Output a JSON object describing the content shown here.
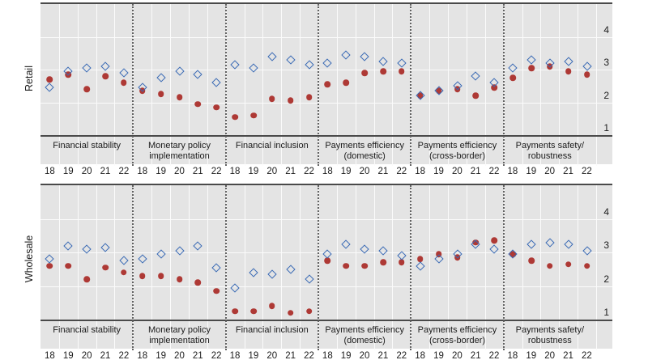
{
  "colors": {
    "diamond_blue": "#3a6ab5",
    "dot_red": "#ae3935",
    "plot_background": "#e4e4e4",
    "gridline": "#fbfbfb",
    "axis_line": "#4a4a4a",
    "separator": "#616161",
    "text": "#1c1c1c"
  },
  "chart_data": [
    {
      "type": "scatter",
      "panel": "Retail",
      "y_ticks": [
        4,
        3,
        2,
        1
      ],
      "y_range": [
        1,
        5
      ],
      "grid": true,
      "years": [
        "18",
        "19",
        "20",
        "21",
        "22"
      ],
      "categories": [
        {
          "label": "Financial stability",
          "lines": [
            "Financial stability"
          ]
        },
        {
          "label": "Monetary policy implementation",
          "lines": [
            "Monetary policy",
            "implementation"
          ]
        },
        {
          "label": "Financial inclusion",
          "lines": [
            "Financial inclusion"
          ]
        },
        {
          "label": "Payments efficiency (domestic)",
          "lines": [
            "Payments efficiency",
            "(domestic)"
          ]
        },
        {
          "label": "Payments efficiency (cross-border)",
          "lines": [
            "Payments efficiency",
            "(cross-border)"
          ]
        },
        {
          "label": "Payments safety/ robustness",
          "lines": [
            "Payments safety/",
            "robustness"
          ]
        }
      ],
      "series": [
        {
          "name": "blue-diamond",
          "marker": "open-diamond",
          "values": [
            [
              2.45,
              2.95,
              3.05,
              3.1,
              2.9
            ],
            [
              2.45,
              2.75,
              2.95,
              2.85,
              2.6
            ],
            [
              3.15,
              3.05,
              3.4,
              3.3,
              3.15
            ],
            [
              3.2,
              3.45,
              3.4,
              3.25,
              3.2
            ],
            [
              2.2,
              2.35,
              2.5,
              2.8,
              2.6
            ],
            [
              3.05,
              3.3,
              3.2,
              3.25,
              3.1
            ]
          ]
        },
        {
          "name": "red-dot",
          "marker": "filled-circle",
          "values": [
            [
              2.7,
              2.85,
              2.4,
              2.8,
              2.6
            ],
            [
              2.35,
              2.25,
              2.15,
              1.95,
              1.85
            ],
            [
              1.55,
              1.6,
              2.1,
              2.05,
              2.15
            ],
            [
              2.55,
              2.6,
              2.9,
              2.95,
              2.95
            ],
            [
              2.2,
              2.35,
              2.4,
              2.2,
              2.45
            ],
            [
              2.75,
              3.05,
              3.1,
              2.95,
              2.85
            ]
          ]
        }
      ]
    },
    {
      "type": "scatter",
      "panel": "Wholesale",
      "y_ticks": [
        4,
        3,
        2,
        1
      ],
      "y_range": [
        1,
        5
      ],
      "grid": true,
      "years": [
        "18",
        "19",
        "20",
        "21",
        "22"
      ],
      "categories": [
        {
          "label": "Financial stability",
          "lines": [
            "Financial stability"
          ]
        },
        {
          "label": "Monetary policy implementation",
          "lines": [
            "Monetary policy",
            "implementation"
          ]
        },
        {
          "label": "Financial inclusion",
          "lines": [
            "Financial inclusion"
          ]
        },
        {
          "label": "Payments efficiency (domestic)",
          "lines": [
            "Payments efficiency",
            "(domestic)"
          ]
        },
        {
          "label": "Payments efficiency (cross-border)",
          "lines": [
            "Payments efficiency",
            "(cross-border)"
          ]
        },
        {
          "label": "Payments safety/ robustness",
          "lines": [
            "Payments safety/",
            "robustness"
          ]
        }
      ],
      "series": [
        {
          "name": "blue-diamond",
          "marker": "open-diamond",
          "values": [
            [
              2.8,
              3.2,
              3.1,
              3.15,
              2.75
            ],
            [
              2.8,
              2.95,
              3.05,
              3.2,
              2.55
            ],
            [
              1.95,
              2.4,
              2.35,
              2.5,
              2.2
            ],
            [
              2.95,
              3.25,
              3.1,
              3.05,
              2.9
            ],
            [
              2.6,
              2.8,
              2.95,
              3.25,
              3.1
            ],
            [
              2.95,
              3.25,
              3.3,
              3.25,
              3.05
            ]
          ]
        },
        {
          "name": "red-dot",
          "marker": "filled-circle",
          "values": [
            [
              2.6,
              2.6,
              2.2,
              2.55,
              2.4
            ],
            [
              2.3,
              2.3,
              2.2,
              2.1,
              1.85
            ],
            [
              1.25,
              1.25,
              1.4,
              1.2,
              1.25
            ],
            [
              2.75,
              2.6,
              2.6,
              2.7,
              2.7
            ],
            [
              2.8,
              2.95,
              2.85,
              3.3,
              3.35
            ],
            [
              2.95,
              2.75,
              2.6,
              2.65,
              2.6
            ]
          ]
        }
      ]
    }
  ]
}
